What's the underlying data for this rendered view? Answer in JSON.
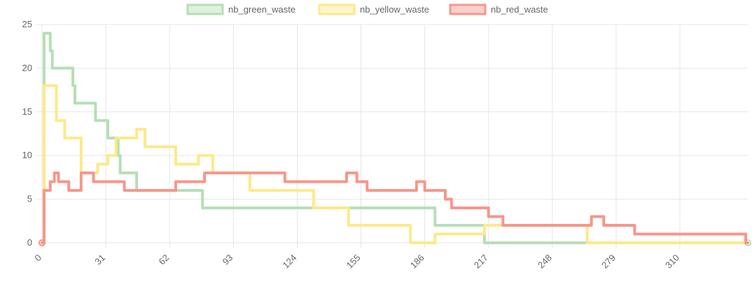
{
  "chart_data": {
    "type": "line",
    "title": "",
    "xlabel": "",
    "ylabel": "",
    "xlim": [
      0,
      343
    ],
    "ylim": [
      0,
      25
    ],
    "x_ticks": [
      0,
      31,
      62,
      93,
      124,
      155,
      186,
      217,
      248,
      279,
      310
    ],
    "y_ticks": [
      0,
      5,
      10,
      15,
      20,
      25
    ],
    "grid": true,
    "legend_position": "top-center",
    "series": [
      {
        "name": "nb_green_waste",
        "color": "#b5dfb5",
        "steps": [
          [
            0,
            0
          ],
          [
            1,
            24
          ],
          [
            4,
            22
          ],
          [
            5,
            20
          ],
          [
            15,
            18
          ],
          [
            16,
            16
          ],
          [
            26,
            14
          ],
          [
            32,
            12
          ],
          [
            37,
            10
          ],
          [
            38,
            8
          ],
          [
            46,
            6
          ],
          [
            78,
            4
          ],
          [
            191,
            2
          ],
          [
            210,
            2
          ],
          [
            215,
            0
          ],
          [
            343,
            0
          ]
        ]
      },
      {
        "name": "nb_yellow_waste",
        "color": "#fde98a",
        "steps": [
          [
            0,
            0
          ],
          [
            1,
            18
          ],
          [
            7,
            14
          ],
          [
            11,
            12
          ],
          [
            19,
            8
          ],
          [
            27,
            9
          ],
          [
            32,
            10
          ],
          [
            36,
            12
          ],
          [
            46,
            13
          ],
          [
            50,
            11
          ],
          [
            65,
            9
          ],
          [
            76,
            10
          ],
          [
            83,
            8
          ],
          [
            101,
            6
          ],
          [
            132,
            4
          ],
          [
            149,
            2
          ],
          [
            179,
            0
          ],
          [
            191,
            1
          ],
          [
            215,
            2
          ],
          [
            265,
            0
          ],
          [
            343,
            0
          ]
        ]
      },
      {
        "name": "nb_red_waste",
        "color": "#f7968a",
        "steps": [
          [
            0,
            0
          ],
          [
            1,
            6
          ],
          [
            4,
            7
          ],
          [
            6,
            8
          ],
          [
            8,
            7
          ],
          [
            13,
            6
          ],
          [
            19,
            8
          ],
          [
            25,
            7
          ],
          [
            40,
            6
          ],
          [
            65,
            7
          ],
          [
            79,
            8
          ],
          [
            105,
            8
          ],
          [
            118,
            7
          ],
          [
            148,
            8
          ],
          [
            153,
            7
          ],
          [
            158,
            6
          ],
          [
            182,
            7
          ],
          [
            186,
            6
          ],
          [
            196,
            5
          ],
          [
            199,
            4
          ],
          [
            217,
            3
          ],
          [
            224,
            2
          ],
          [
            267,
            3
          ],
          [
            273,
            2
          ],
          [
            288,
            1
          ],
          [
            342,
            0
          ],
          [
            343,
            0
          ]
        ]
      }
    ]
  }
}
